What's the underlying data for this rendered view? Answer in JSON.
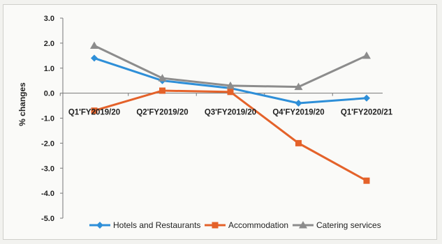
{
  "chart_data": {
    "type": "line",
    "title": "",
    "xlabel": "",
    "ylabel": "% changes",
    "ylim": [
      -5.0,
      3.0
    ],
    "ytick_step": 1.0,
    "ytick_labels": [
      "3.0",
      "2.0",
      "1.0",
      "0.0",
      "-1.0",
      "-2.0",
      "-3.0",
      "-4.0",
      "-5.0"
    ],
    "categories": [
      "Q1'FY2019/20",
      "Q2'FY2019/20",
      "Q3'FY2019/20",
      "Q4'FY2019/20",
      "Q1'FY2020/21"
    ],
    "series": [
      {
        "name": "Hotels and Restaurants",
        "values": [
          1.4,
          0.5,
          0.2,
          -0.4,
          -0.2
        ],
        "color": "#2e8fd8",
        "marker": "diamond"
      },
      {
        "name": "Accommodation",
        "values": [
          -0.7,
          0.1,
          0.05,
          -2.0,
          -3.5
        ],
        "color": "#e4622a",
        "marker": "square"
      },
      {
        "name": "Catering services",
        "values": [
          1.9,
          0.6,
          0.3,
          0.25,
          1.5
        ],
        "color": "#8c8c8c",
        "marker": "triangle"
      }
    ],
    "legend_position": "bottom",
    "grid": false
  }
}
